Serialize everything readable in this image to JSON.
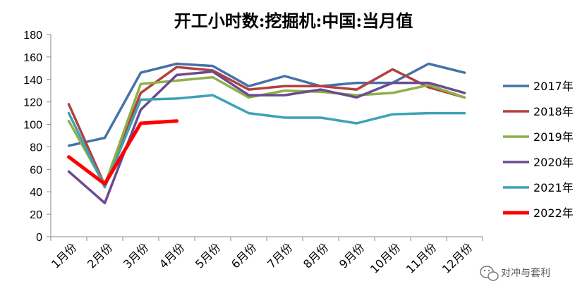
{
  "chart_data": {
    "type": "line",
    "title": "开工小时数:挖掘机:中国:当月值",
    "categories": [
      "1月份",
      "2月份",
      "3月份",
      "4月份",
      "5月份",
      "6月份",
      "7月份",
      "8月份",
      "9月份",
      "10月份",
      "11月份",
      "12月份"
    ],
    "ylim": [
      0,
      180
    ],
    "yticks": [
      0,
      20,
      40,
      60,
      80,
      100,
      120,
      140,
      160,
      180
    ],
    "grid": false,
    "legend_position": "right",
    "series": [
      {
        "name": "2017年",
        "color": "#4472a8",
        "width": 3.5,
        "values": [
          81,
          88,
          146,
          154,
          152,
          134,
          143,
          134,
          137,
          137,
          154,
          146
        ]
      },
      {
        "name": "2018年",
        "color": "#b34040",
        "width": 3.5,
        "values": [
          118,
          46,
          128,
          151,
          148,
          131,
          134,
          134,
          131,
          149,
          133,
          124
        ]
      },
      {
        "name": "2019年",
        "color": "#8db04a",
        "width": 3.5,
        "values": [
          103,
          46,
          136,
          139,
          142,
          124,
          130,
          129,
          126,
          128,
          135,
          124
        ]
      },
      {
        "name": "2020年",
        "color": "#6c4a8f",
        "width": 3.5,
        "values": [
          58,
          30,
          113,
          144,
          147,
          126,
          126,
          131,
          124,
          137,
          137,
          128
        ]
      },
      {
        "name": "2021年",
        "color": "#3da3b5",
        "width": 3.5,
        "values": [
          110,
          44,
          122,
          123,
          126,
          110,
          106,
          106,
          101,
          109,
          110,
          110
        ]
      },
      {
        "name": "2022年",
        "color": "#ff0000",
        "width": 5,
        "values": [
          71,
          47,
          101,
          103,
          null,
          null,
          null,
          null,
          null,
          null,
          null,
          null
        ]
      }
    ]
  },
  "watermark": {
    "text": "对冲与套利",
    "icon": "wechat-icon"
  }
}
